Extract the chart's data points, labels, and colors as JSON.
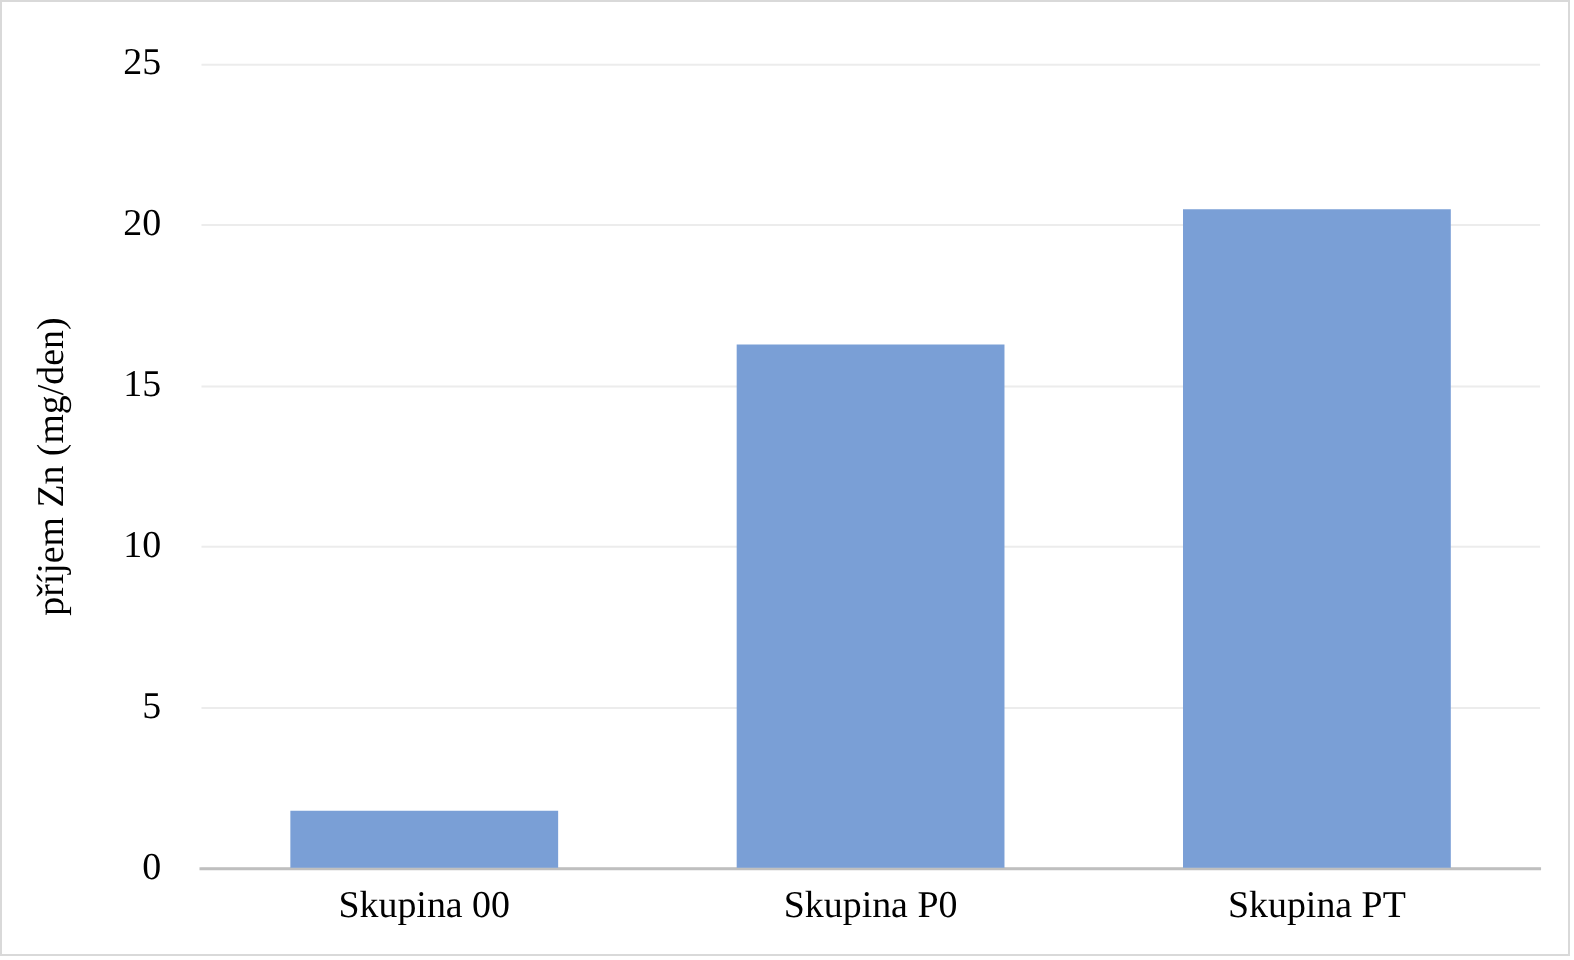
{
  "chart_data": {
    "type": "bar",
    "ylabel": "příjem Zn (mg/den)",
    "categories": [
      "Skupina 00",
      "Skupina P0",
      "Skupina PT"
    ],
    "values": [
      1.8,
      16.3,
      20.5
    ],
    "color": "#7a9fd6",
    "ylim": [
      0,
      25
    ],
    "yticks": [
      0,
      5,
      10,
      15,
      20,
      25
    ],
    "grid": "y"
  }
}
